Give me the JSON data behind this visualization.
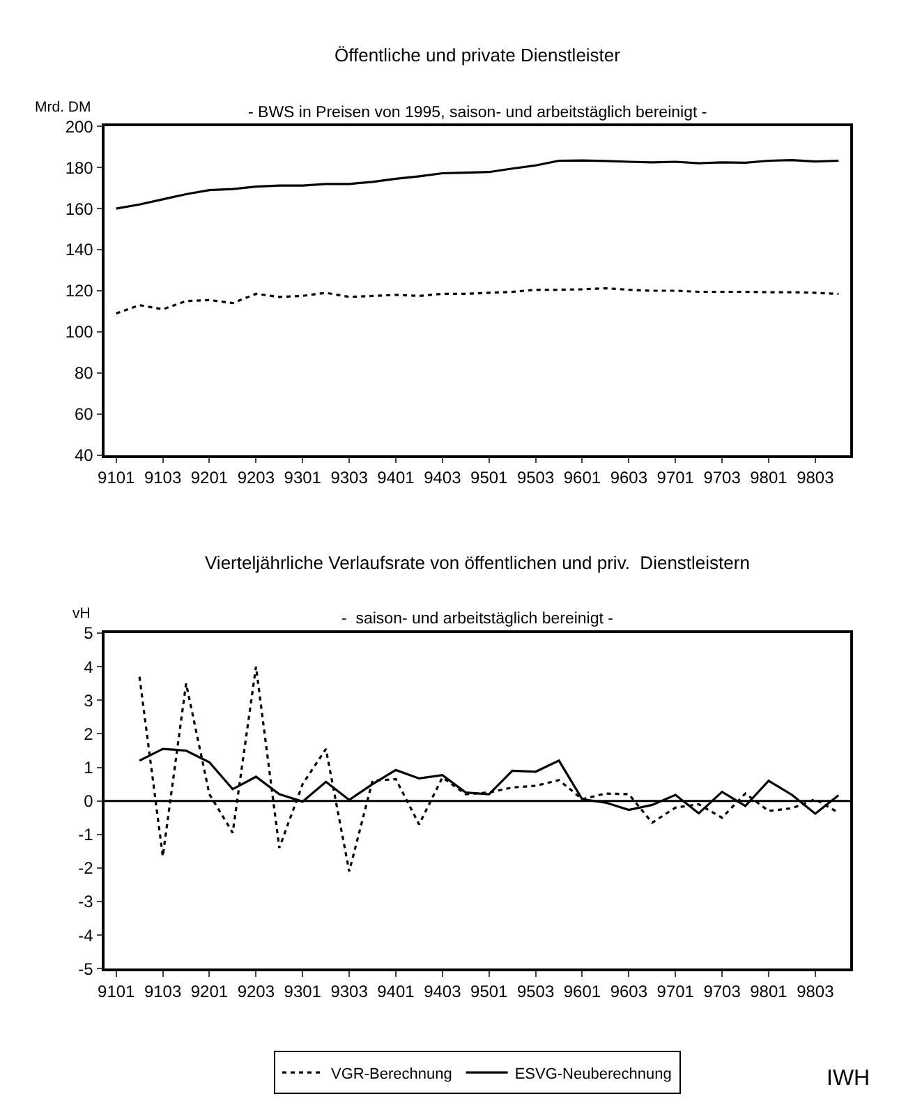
{
  "chart_data": [
    {
      "type": "line",
      "title": "Öffentliche und private Dienstleister",
      "subtitle": "- BWS in Preisen von 1995, saison- und arbeitstäglich bereinigt -",
      "ylabel": "Mrd. DM",
      "categories": [
        "9101",
        null,
        "9103",
        null,
        "9201",
        null,
        "9203",
        null,
        "9301",
        null,
        "9303",
        null,
        "9401",
        null,
        "9403",
        null,
        "9501",
        null,
        "9503",
        null,
        "9601",
        null,
        "9603",
        null,
        "9701",
        null,
        "9703",
        null,
        "9801",
        null,
        "9803",
        null
      ],
      "series": [
        {
          "color": "#000000",
          "line_style": "dashed",
          "values": [
            109,
            113,
            111,
            115,
            115.5,
            114,
            118.5,
            117,
            117.5,
            119,
            117,
            117.5,
            118,
            117.5,
            118.5,
            118.5,
            119,
            119.5,
            120.5,
            120.5,
            120.7,
            121.2,
            120.5,
            120,
            120,
            119.5,
            119.5,
            119.5,
            119.3,
            119.3,
            119,
            118.5
          ]
        },
        {
          "color": "#000000",
          "line_style": "solid",
          "values": [
            160,
            162,
            164.5,
            167,
            169,
            169.5,
            170.7,
            171.2,
            171.2,
            172,
            172,
            173,
            174.5,
            175.7,
            177.2,
            177.5,
            177.8,
            179.5,
            181,
            183.3,
            183.4,
            183.2,
            182.8,
            182.5,
            182.8,
            182.1,
            182.5,
            182.3,
            183.3,
            183.6,
            182.9,
            183.3
          ]
        }
      ],
      "ylim": [
        40,
        200
      ],
      "yticks": [
        40,
        60,
        80,
        100,
        120,
        140,
        160,
        180,
        200
      ],
      "grid": false,
      "legend": false,
      "marker": "none"
    },
    {
      "type": "line",
      "title": "Vierteljährliche Verlaufsrate von öffentlichen und priv.  Dienstleistern",
      "subtitle": "-  saison- und arbeitstäglich bereinigt -",
      "ylabel": "vH",
      "categories": [
        "9101",
        null,
        "9103",
        null,
        "9201",
        null,
        "9203",
        null,
        "9301",
        null,
        "9303",
        null,
        "9401",
        null,
        "9403",
        null,
        "9501",
        null,
        "9503",
        null,
        "9601",
        null,
        "9603",
        null,
        "9701",
        null,
        "9703",
        null,
        "9801",
        null,
        "9803",
        null
      ],
      "series": [
        {
          "name": "VGR-Berechnung",
          "color": "#000000",
          "line_style": "dashed",
          "values": [
            null,
            3.7,
            -1.65,
            3.5,
            0.2,
            -0.95,
            4.0,
            -1.4,
            0.5,
            1.55,
            -2.1,
            0.6,
            0.65,
            -0.7,
            0.7,
            0.2,
            0.25,
            0.4,
            0.45,
            0.62,
            0.05,
            0.22,
            0.2,
            -0.65,
            -0.2,
            -0.1,
            -0.5,
            0.22,
            -0.3,
            -0.22,
            0.05,
            -0.35
          ]
        },
        {
          "name": "ESVG-Neuberechnung",
          "color": "#000000",
          "line_style": "solid",
          "values": [
            null,
            1.2,
            1.55,
            1.5,
            1.15,
            0.35,
            0.72,
            0.2,
            -0.02,
            0.57,
            0.03,
            0.5,
            0.92,
            0.67,
            0.77,
            0.25,
            0.2,
            0.9,
            0.87,
            1.2,
            0.05,
            -0.05,
            -0.27,
            -0.12,
            0.18,
            -0.37,
            0.27,
            -0.15,
            0.6,
            0.18,
            -0.38,
            0.17
          ]
        }
      ],
      "ref_lines": [
        {
          "axis": "y",
          "value": 0
        }
      ],
      "ylim": [
        -5,
        5
      ],
      "yticks": [
        -5,
        -4,
        -3,
        -2,
        -1,
        0,
        1,
        2,
        3,
        4,
        5
      ],
      "grid": false,
      "legend": "bottom",
      "marker": "none",
      "annotations": [
        "IWH"
      ]
    }
  ]
}
